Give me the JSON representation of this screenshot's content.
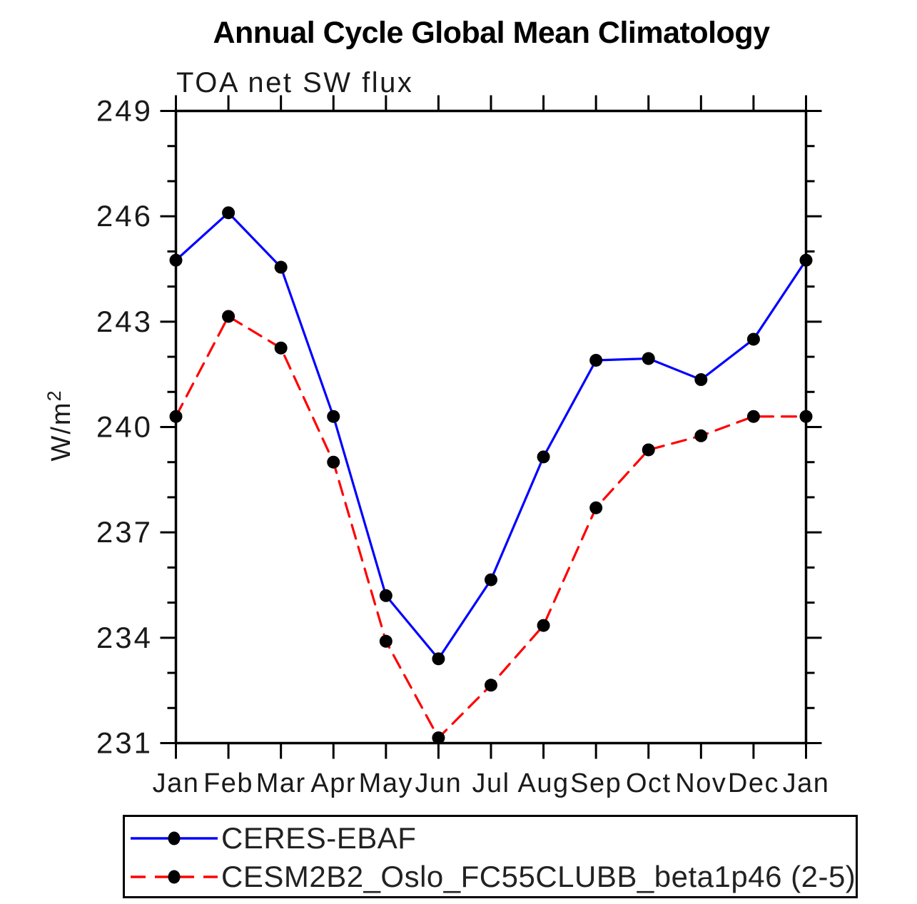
{
  "chart_data": {
    "type": "line",
    "title": "Annual Cycle Global Mean Climatology",
    "subtitle": "TOA net SW flux",
    "ylabel": "W/m²",
    "xlabel": "",
    "categories": [
      "Jan",
      "Feb",
      "Mar",
      "Apr",
      "May",
      "Jun",
      "Jul",
      "Aug",
      "Sep",
      "Oct",
      "Nov",
      "Dec",
      "Jan"
    ],
    "ylim": [
      231,
      249
    ],
    "ytick_major": [
      231,
      234,
      237,
      240,
      243,
      246,
      249
    ],
    "ytick_minor_step": 1,
    "grid": "off",
    "legend_position": "bottom",
    "series": [
      {
        "name": "CERES-EBAF",
        "color": "#0000ff",
        "line_style": "solid",
        "marker": "circle",
        "marker_color": "#000000",
        "values": [
          244.75,
          246.1,
          244.55,
          240.3,
          235.2,
          233.4,
          235.65,
          239.15,
          241.9,
          241.95,
          241.35,
          242.5,
          244.75
        ]
      },
      {
        "name": "CESM2B2_Oslo_FC55CLUBB_beta1p46 (2-5)",
        "color": "#ff0000",
        "line_style": "dashed",
        "marker": "circle",
        "marker_color": "#000000",
        "values": [
          240.3,
          243.15,
          242.25,
          239.0,
          233.9,
          231.15,
          232.65,
          234.35,
          237.7,
          239.35,
          239.75,
          240.3,
          240.3
        ]
      }
    ]
  }
}
